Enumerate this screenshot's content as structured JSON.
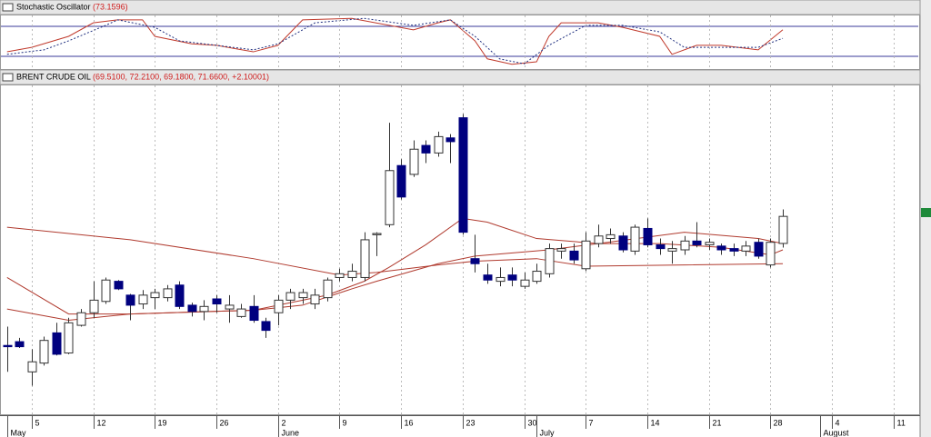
{
  "chart_data": [
    {
      "type": "line",
      "title": "Stochastic Oscillator",
      "title_value": "(73.1596)",
      "xlim": [
        -0.5,
        74
      ],
      "ylim": [
        0,
        100
      ],
      "levels": [
        20,
        80
      ],
      "level_color": "#3a3a9a",
      "series": [
        {
          "color": "#c0392b",
          "style": "solid",
          "x": [
            0,
            2,
            5,
            7,
            9,
            11,
            12,
            15,
            17,
            20,
            22,
            24,
            28,
            33,
            35,
            36,
            38,
            39,
            41,
            43,
            44,
            45,
            48,
            50,
            53,
            54,
            56,
            58,
            61,
            63
          ],
          "values": [
            29,
            38,
            60,
            87,
            93,
            93,
            60,
            45,
            42,
            29,
            42,
            93,
            96,
            73,
            87,
            93,
            51,
            15,
            4,
            9,
            60,
            87,
            87,
            78,
            60,
            24,
            42,
            42,
            33,
            73.1596
          ]
        },
        {
          "color": "#1f2f7f",
          "style": "dotted",
          "x": [
            0,
            3,
            5,
            8,
            9,
            12,
            14,
            17,
            20,
            22,
            25,
            29,
            33,
            36,
            38,
            40,
            42,
            44,
            47,
            50,
            53,
            55,
            58,
            61,
            63
          ],
          "values": [
            24,
            33,
            51,
            82,
            93,
            78,
            51,
            42,
            33,
            45,
            87,
            96,
            82,
            93,
            60,
            15,
            5,
            42,
            82,
            82,
            69,
            38,
            38,
            38,
            56
          ]
        }
      ]
    },
    {
      "type": "candlestick",
      "title": "BRENT CRUDE OIL",
      "title_value": "(69.5100, 72.2100, 69.1800, 71.6600, +2.10001)",
      "xlim": [
        -0.5,
        74
      ],
      "ylim": [
        56,
        82
      ],
      "grid": true,
      "up_color": "#ffffff",
      "down_color": "#00007f",
      "wick_color": "#333333",
      "xticks": [
        {
          "value": 2,
          "label": "5"
        },
        {
          "value": 7,
          "label": "12"
        },
        {
          "value": 12,
          "label": "19"
        },
        {
          "value": 17,
          "label": "26"
        },
        {
          "value": 22,
          "label": "2"
        },
        {
          "value": 27,
          "label": "9"
        },
        {
          "value": 32,
          "label": "16"
        },
        {
          "value": 37,
          "label": "23"
        },
        {
          "value": 42,
          "label": "30"
        },
        {
          "value": 47,
          "label": "7"
        },
        {
          "value": 52,
          "label": "14"
        },
        {
          "value": 57,
          "label": "21"
        },
        {
          "value": 62,
          "label": "28"
        },
        {
          "value": 67,
          "label": "4"
        },
        {
          "value": 72,
          "label": "11"
        }
      ],
      "month_ticks": [
        {
          "value": 0,
          "label": "May"
        },
        {
          "value": 22,
          "label": "June"
        },
        {
          "value": 43,
          "label": "July"
        },
        {
          "value": 66,
          "label": "August"
        }
      ],
      "open": [
        61.4,
        61.7,
        59.3,
        60.0,
        62.4,
        60.8,
        63.0,
        64.0,
        64.9,
        66.5,
        65.4,
        64.7,
        65.2,
        65.2,
        66.2,
        64.6,
        64.1,
        65.1,
        64.3,
        63.7,
        64.5,
        63.3,
        64.0,
        65.0,
        65.2,
        64.7,
        65.2,
        66.8,
        66.8,
        66.8,
        70.2,
        71.0,
        75.7,
        75.0,
        77.3,
        76.7,
        77.9,
        79.5,
        68.3,
        67.0,
        66.5,
        67.0,
        66.1,
        66.5,
        67.1,
        68.9,
        68.9,
        67.5,
        69.5,
        69.9,
        70.1,
        68.9,
        70.7,
        69.4,
        68.9,
        69.0,
        69.7,
        69.4,
        69.3,
        69.1,
        68.9,
        69.6,
        67.8,
        69.51
      ],
      "high": [
        62.9,
        62.0,
        61.1,
        62.1,
        63.2,
        63.6,
        64.3,
        66.5,
        66.8,
        66.6,
        65.5,
        65.8,
        65.9,
        66.2,
        66.5,
        64.8,
        65.0,
        65.4,
        65.4,
        64.7,
        65.4,
        63.6,
        65.4,
        65.9,
        65.9,
        65.9,
        66.8,
        67.5,
        67.9,
        70.4,
        70.4,
        79.1,
        76.2,
        77.7,
        77.7,
        78.4,
        78.2,
        79.8,
        70.2,
        67.9,
        67.6,
        67.6,
        67.2,
        67.9,
        69.5,
        69.5,
        69.5,
        70.4,
        71.0,
        70.7,
        70.4,
        71.0,
        71.5,
        69.9,
        69.7,
        70.1,
        71.2,
        69.9,
        69.5,
        69.5,
        69.7,
        69.9,
        69.9,
        72.21
      ],
      "low": [
        59.3,
        61.2,
        58.2,
        59.8,
        60.6,
        60.7,
        62.9,
        63.6,
        64.7,
        65.8,
        63.4,
        64.3,
        64.3,
        64.9,
        64.3,
        63.7,
        63.4,
        64.0,
        63.2,
        63.6,
        63.2,
        62.0,
        63.0,
        64.3,
        64.7,
        64.3,
        64.9,
        66.5,
        66.5,
        66.5,
        68.5,
        70.8,
        73.0,
        74.8,
        75.9,
        76.4,
        75.9,
        70.2,
        67.2,
        66.3,
        66.1,
        66.1,
        65.9,
        66.3,
        66.8,
        68.3,
        67.9,
        67.3,
        69.2,
        69.5,
        68.8,
        68.6,
        69.2,
        68.6,
        67.9,
        68.6,
        69.2,
        69.0,
        68.6,
        68.5,
        68.5,
        68.3,
        67.6,
        69.18
      ],
      "close": [
        61.3,
        61.3,
        60.1,
        61.8,
        60.7,
        63.2,
        64.0,
        65.0,
        66.6,
        65.9,
        64.6,
        65.4,
        65.6,
        65.9,
        64.5,
        64.1,
        64.5,
        64.7,
        64.6,
        64.3,
        63.4,
        62.6,
        65.0,
        65.6,
        65.6,
        65.4,
        66.6,
        67.1,
        67.3,
        69.8,
        70.3,
        75.3,
        73.2,
        77.0,
        76.7,
        78.0,
        77.6,
        70.4,
        67.9,
        66.6,
        66.8,
        66.6,
        66.6,
        67.3,
        69.1,
        69.1,
        68.2,
        69.7,
        70.1,
        70.2,
        69.0,
        70.8,
        69.4,
        69.1,
        69.1,
        69.7,
        69.4,
        69.6,
        69.0,
        68.9,
        69.3,
        68.5,
        69.6,
        71.66
      ],
      "overlays": [
        {
          "color": "#b03a2e",
          "x": [
            0,
            10,
            20,
            27,
            30,
            35,
            38,
            43,
            47,
            55,
            63
          ],
          "values": [
            70.8,
            69.8,
            68.3,
            67.0,
            67.2,
            67.8,
            68.1,
            68.3,
            67.7,
            67.8,
            67.9
          ]
        },
        {
          "color": "#b03a2e",
          "x": [
            0,
            5,
            10,
            20,
            26,
            29,
            31,
            34,
            37,
            39,
            43,
            48,
            55,
            61,
            63
          ],
          "values": [
            66.8,
            63.9,
            63.9,
            64.2,
            65.4,
            66.5,
            67.6,
            69.4,
            71.5,
            71.2,
            69.9,
            69.5,
            70.4,
            69.9,
            69.5
          ]
        },
        {
          "color": "#b03a2e",
          "x": [
            0,
            5,
            10,
            20,
            24,
            28,
            30,
            35,
            38,
            44,
            48,
            53,
            58,
            62,
            63
          ],
          "values": [
            64.3,
            63.4,
            63.9,
            64.2,
            64.6,
            65.9,
            66.5,
            67.9,
            68.5,
            69.0,
            69.5,
            69.5,
            69.2,
            68.6,
            69.0
          ]
        }
      ]
    }
  ]
}
